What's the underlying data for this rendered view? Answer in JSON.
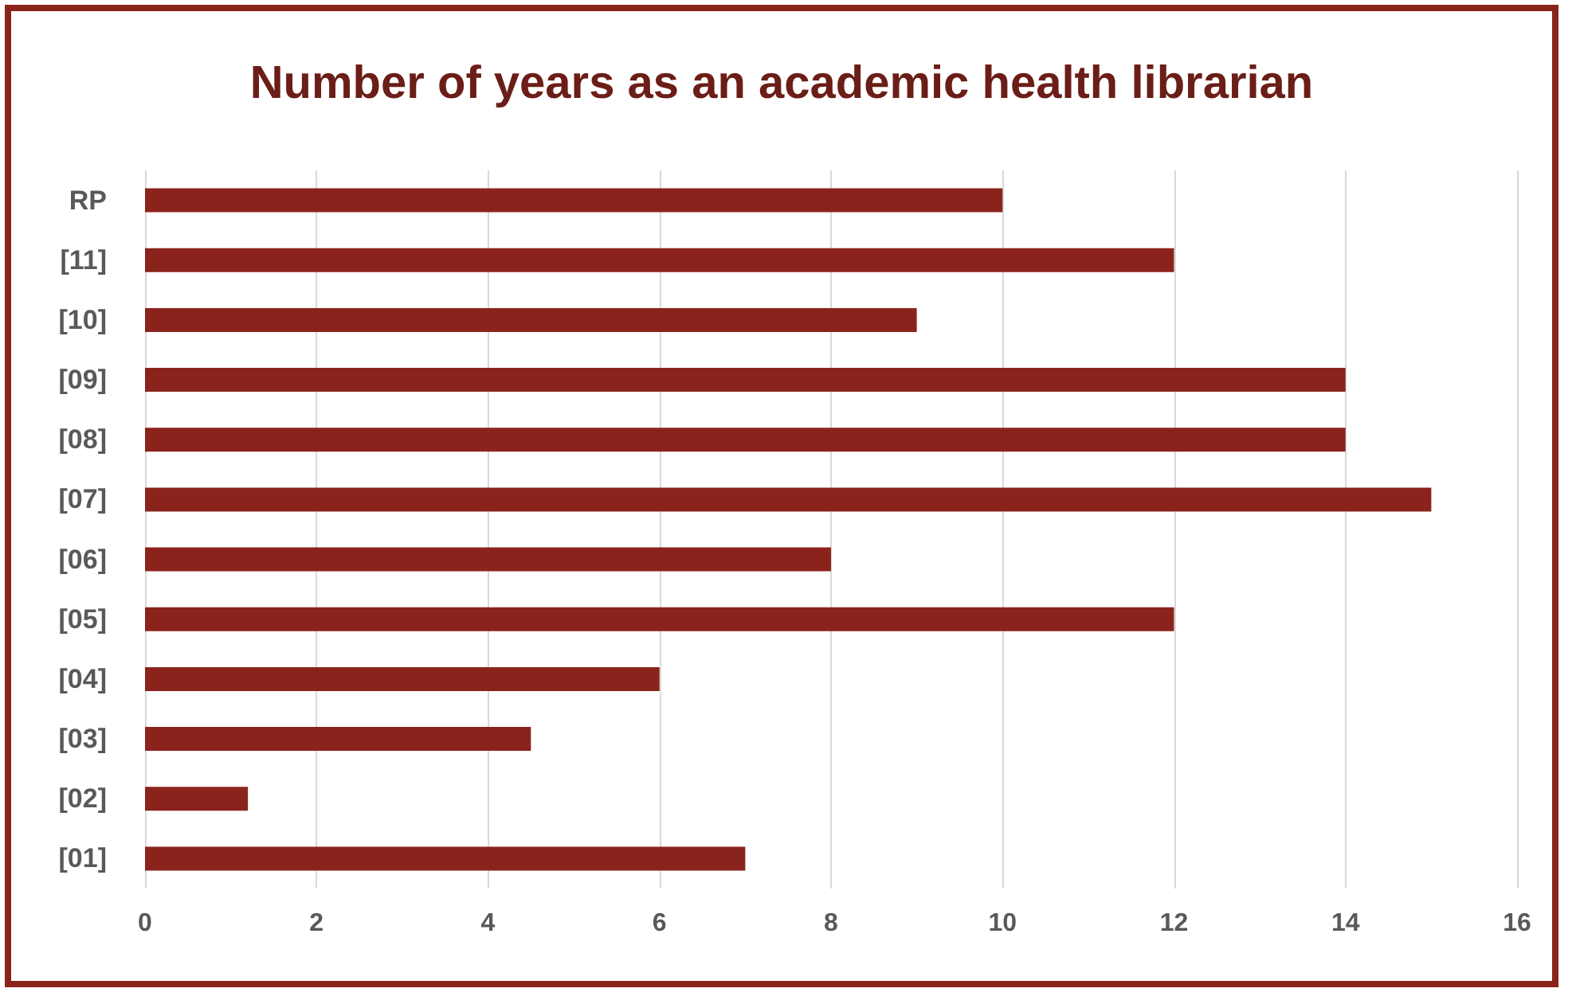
{
  "chart_data": {
    "type": "bar",
    "orientation": "horizontal",
    "title": "Number of years as an academic health librarian",
    "categories": [
      "RP",
      "[11]",
      "[10]",
      "[09]",
      "[08]",
      "[07]",
      "[06]",
      "[05]",
      "[04]",
      "[03]",
      "[02]",
      "[01]"
    ],
    "values": [
      10,
      12,
      9,
      14,
      14,
      15,
      8,
      12,
      6,
      4.5,
      1.2,
      7
    ],
    "color": "#8b231d",
    "xlim": [
      0,
      16
    ],
    "xticks": [
      0,
      2,
      4,
      6,
      8,
      10,
      12,
      14,
      16
    ],
    "grid": "x"
  }
}
